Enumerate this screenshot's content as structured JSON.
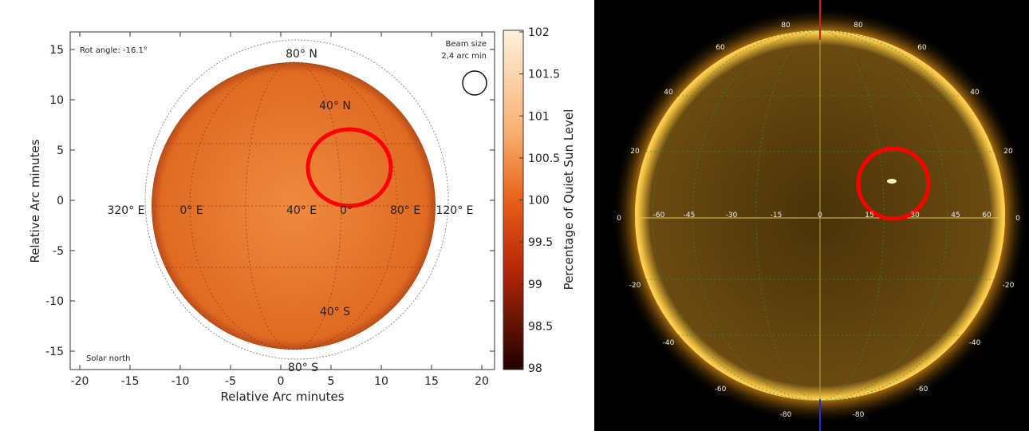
{
  "chart_data": [
    {
      "type": "heatmap",
      "title": "",
      "xlabel": "Relative Arc minutes",
      "ylabel": "Relative Arc minutes",
      "xlim": [
        -21,
        21
      ],
      "ylim": [
        -17,
        17
      ],
      "xticks": [
        "-20",
        "-15",
        "-10",
        "-5",
        "0",
        "5",
        "10",
        "15",
        "20"
      ],
      "yticks": [
        "15",
        "10",
        "5",
        "0",
        "-5",
        "-10",
        "-15"
      ],
      "colorbar": {
        "label": "Percentage of Quiet Sun Level",
        "range": [
          98,
          102
        ],
        "ticks": [
          "102",
          "101.5",
          "101",
          "100.5",
          "100",
          "99.5",
          "99",
          "98.5",
          "98"
        ]
      },
      "annotations": {
        "rot_angle": "Rot angle: -16.1°",
        "beam_title": "Beam size",
        "beam_size": "2,4 arc min",
        "solar_north": "Solar north",
        "grid_labels": [
          "80° N",
          "40° N",
          "320° E",
          "0° E",
          "40° E",
          "0°",
          "80° E",
          "120° E",
          "40° S",
          "80° S"
        ]
      },
      "highlight_circle_color": "#ff0000"
    },
    {
      "type": "image",
      "title": "",
      "lat_labels_left": [
        "60",
        "40",
        "20",
        "0",
        "-20",
        "-40",
        "-60"
      ],
      "lat_labels_right": [
        "60",
        "40",
        "20",
        "0",
        "-20",
        "-40",
        "-60"
      ],
      "top_labels": [
        "80",
        "80"
      ],
      "bottom_labels": [
        "-80",
        "-80"
      ],
      "equator_labels": [
        "-60",
        "-45",
        "-30",
        "-15",
        "0",
        "15",
        "30",
        "45",
        "60"
      ],
      "highlight_circle_color": "#ff0000"
    }
  ]
}
